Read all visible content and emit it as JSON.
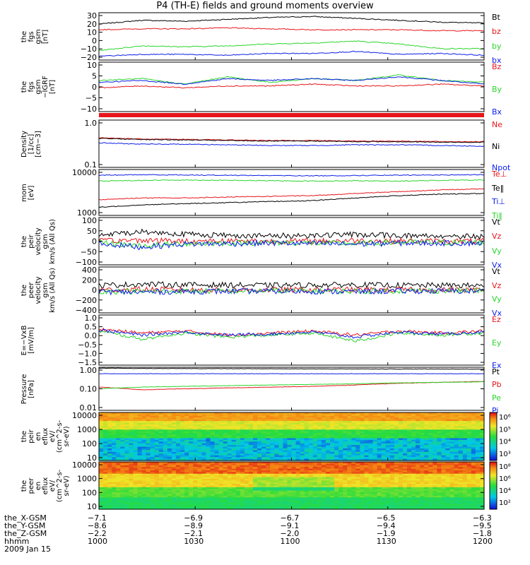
{
  "title": "P4 (TH-E) fields and ground moments overview",
  "colors": {
    "black": "#000000",
    "red": "#e8151b",
    "green": "#2ad52a",
    "blue": "#0b1ee8"
  },
  "chart_data": [
    {
      "type": "line",
      "ylabel": "the\nfgs\ngsm\n[nT]",
      "ylim": [
        -20,
        30
      ],
      "ticks": [
        "30",
        "20",
        "10",
        "0",
        "−10",
        "−20"
      ],
      "series": [
        {
          "name": "Bt",
          "color": "black",
          "values": [
            18,
            22,
            21,
            23,
            25,
            26,
            24,
            22,
            20,
            19
          ]
        },
        {
          "name": "bz",
          "color": "red",
          "values": [
            12,
            13,
            13,
            14,
            13,
            12,
            12,
            12,
            11,
            11
          ]
        },
        {
          "name": "by",
          "color": "green",
          "values": [
            -10,
            -5,
            -6,
            -5,
            -3,
            -2,
            0,
            -3,
            -8,
            -8
          ]
        },
        {
          "name": "bx",
          "color": "blue",
          "values": [
            -16,
            -14,
            -14,
            -15,
            -13,
            -13,
            -11,
            -14,
            -13,
            -15
          ]
        }
      ]
    },
    {
      "type": "line",
      "ylabel": "the\nfgs\ngsm\n−IGRF\n[nT]",
      "ylim": [
        -15,
        12
      ],
      "ticks": [
        "10",
        "5",
        "0",
        "−5",
        "−10"
      ],
      "series": [
        {
          "name": "Bz",
          "color": "red",
          "values": [
            -2,
            -1,
            -2,
            -1,
            -1,
            0,
            -1,
            -1,
            0,
            -1
          ]
        },
        {
          "name": "By",
          "color": "green",
          "values": [
            2,
            3,
            0,
            4,
            1,
            3,
            2,
            5,
            2,
            1
          ]
        },
        {
          "name": "Bx",
          "color": "blue",
          "values": [
            1,
            2,
            0,
            3,
            2,
            3,
            2,
            4,
            2,
            0
          ]
        }
      ]
    },
    {
      "type": "line",
      "ylabel": "Density\n[1/cc]\n[cm−3]",
      "scale": "log",
      "ylim": [
        0.1,
        1.0
      ],
      "ticks": [
        "1.0",
        "0.1"
      ],
      "series": [
        {
          "name": "Ne",
          "color": "red",
          "values": [
            0.42,
            0.4,
            0.39,
            0.38,
            0.37,
            0.37,
            0.36,
            0.36,
            0.35,
            0.35
          ]
        },
        {
          "name": "Ni",
          "color": "black",
          "values": [
            0.41,
            0.39,
            0.38,
            0.37,
            0.36,
            0.36,
            0.35,
            0.35,
            0.34,
            0.34
          ]
        },
        {
          "name": "Npot",
          "color": "blue",
          "values": [
            0.33,
            0.31,
            0.31,
            0.3,
            0.29,
            0.29,
            0.3,
            0.3,
            0.29,
            0.28
          ]
        }
      ]
    },
    {
      "type": "line",
      "ylabel": "mom\n[eV]",
      "scale": "log",
      "ylim": [
        1000,
        10000
      ],
      "ticks": [
        "10000",
        "1000"
      ],
      "series": [
        {
          "name": "Te⊥",
          "color": "red",
          "values": [
            2200,
            2400,
            2400,
            2500,
            2600,
            2700,
            3000,
            3300,
            3600,
            3800
          ]
        },
        {
          "name": "Te‖",
          "color": "black",
          "values": [
            1500,
            1700,
            1800,
            1900,
            2000,
            2100,
            2400,
            2700,
            2900,
            3000
          ]
        },
        {
          "name": "Ti⊥",
          "color": "blue",
          "values": [
            7500,
            7700,
            7600,
            7500,
            7400,
            7300,
            7400,
            7500,
            7600,
            7700
          ]
        },
        {
          "name": "Ti‖",
          "color": "green",
          "values": [
            5600,
            5800,
            5900,
            5800,
            5700,
            5600,
            5700,
            5600,
            5800,
            5900
          ]
        }
      ]
    },
    {
      "type": "line",
      "ylabel": "the\npeir\nvelocity\ngsm\nkm/s (All Qs)",
      "ylim": [
        -100,
        100
      ],
      "ticks": [
        "100",
        "50",
        "0",
        "−50",
        "−100"
      ],
      "series": [
        {
          "name": "Vt",
          "color": "black",
          "values": [
            25,
            40,
            30,
            25,
            22,
            25,
            28,
            24,
            22,
            20
          ]
        },
        {
          "name": "Vz",
          "color": "red",
          "values": [
            0,
            5,
            0,
            2,
            0,
            0,
            3,
            0,
            0,
            0
          ]
        },
        {
          "name": "Vy",
          "color": "green",
          "values": [
            -5,
            -20,
            -10,
            -8,
            -5,
            -8,
            -10,
            -5,
            -5,
            -5
          ]
        },
        {
          "name": "Vx",
          "color": "blue",
          "values": [
            -10,
            -25,
            -12,
            -10,
            -8,
            -10,
            -12,
            -8,
            -8,
            -8
          ]
        }
      ]
    },
    {
      "type": "line",
      "ylabel": "the\npeer\nvelocity\ngsm\nkm/s (All Qs)",
      "ylim": [
        -400,
        400
      ],
      "ticks": [
        "400",
        "200",
        "0",
        "−200",
        "−400"
      ],
      "series": [
        {
          "name": "Vt",
          "color": "black",
          "values": [
            80,
            100,
            90,
            85,
            80,
            85,
            90,
            80,
            80,
            75
          ]
        },
        {
          "name": "Vz",
          "color": "red",
          "values": [
            0,
            10,
            0,
            0,
            0,
            0,
            5,
            0,
            0,
            0
          ]
        },
        {
          "name": "Vy",
          "color": "green",
          "values": [
            -20,
            -30,
            -20,
            -20,
            -15,
            -20,
            -25,
            -15,
            -15,
            -15
          ]
        },
        {
          "name": "Vx",
          "color": "blue",
          "values": [
            -30,
            -40,
            -25,
            -25,
            -20,
            -25,
            -30,
            -20,
            -20,
            -20
          ]
        }
      ]
    },
    {
      "type": "line",
      "ylabel": "E=−VxB\n[mV/m]",
      "ylim": [
        -1.5,
        1.0
      ],
      "ticks": [
        "1.0",
        "0.5",
        "0.0",
        "−0.5",
        "−1.0",
        "−1.5"
      ],
      "series": [
        {
          "name": "Ez",
          "color": "red",
          "values": [
            0.3,
            0.1,
            0.2,
            0.0,
            0.1,
            0.2,
            0.0,
            0.2,
            0.1,
            0.2
          ]
        },
        {
          "name": "Ey",
          "color": "green",
          "values": [
            0.2,
            -0.2,
            0.1,
            -0.1,
            0.0,
            0.1,
            -0.3,
            0.1,
            0.0,
            0.1
          ]
        },
        {
          "name": "Ex",
          "color": "blue",
          "values": [
            0.25,
            0.0,
            0.15,
            0.0,
            0.05,
            0.15,
            -0.1,
            0.15,
            0.05,
            0.15
          ]
        }
      ]
    },
    {
      "type": "line",
      "ylabel": "Pressure\n[nPa]",
      "scale": "log",
      "ylim": [
        0.01,
        1.0
      ],
      "ticks": [
        "1.00",
        "0.10",
        "0.01"
      ],
      "series": [
        {
          "name": "Pt",
          "color": "black",
          "values": [
            0.9,
            0.88,
            0.87,
            0.86,
            0.85,
            0.84,
            0.84,
            0.83,
            0.83,
            0.82
          ]
        },
        {
          "name": "Pb",
          "color": "red",
          "values": [
            0.12,
            0.09,
            0.1,
            0.11,
            0.12,
            0.13,
            0.15,
            0.18,
            0.2,
            0.22
          ]
        },
        {
          "name": "Pe",
          "color": "green",
          "values": [
            0.1,
            0.12,
            0.13,
            0.14,
            0.15,
            0.16,
            0.17,
            0.19,
            0.2,
            0.21
          ]
        },
        {
          "name": "Pi",
          "color": "blue",
          "values": [
            0.5,
            0.5,
            0.5,
            0.5,
            0.5,
            0.5,
            0.5,
            0.5,
            0.5,
            0.5
          ]
        }
      ]
    },
    {
      "type": "heatmap",
      "ylabel": "the\npeir\nen\neflux\neV/\n(cm^2-s-\nsr-eV)",
      "scale": "log",
      "ylim": [
        10,
        20000
      ],
      "ticks": [
        "10000",
        "1000",
        "100",
        "10"
      ],
      "colorbar": [
        "10⁶",
        "10⁵",
        "10⁴",
        "10³"
      ]
    },
    {
      "type": "heatmap",
      "ylabel": "the\npeer\nen\neflux\neV/\n(cm^2-s-\nsr-eV)",
      "scale": "log",
      "ylim": [
        8,
        20000
      ],
      "ticks": [
        "10000",
        "1000",
        "100",
        "10"
      ],
      "colorbar": [
        "10⁸",
        "10⁶",
        "10⁴",
        "10²"
      ]
    }
  ],
  "x_axis": {
    "rows": [
      {
        "label": "the_X-GSM",
        "values": [
          "−7.1",
          "−6.9",
          "−6.7",
          "−6.5",
          "−6.3"
        ]
      },
      {
        "label": "the_Y-GSM",
        "values": [
          "−8.6",
          "−8.9",
          "−9.1",
          "−9.4",
          "−9.5"
        ]
      },
      {
        "label": "the_Z-GSM",
        "values": [
          "−2.2",
          "−2.1",
          "−2.0",
          "−1.9",
          "−1.8"
        ]
      },
      {
        "label": "hhmm",
        "values": [
          "1000",
          "1030",
          "1100",
          "1130",
          "1200"
        ]
      }
    ],
    "date": "2009 Jan 15"
  }
}
